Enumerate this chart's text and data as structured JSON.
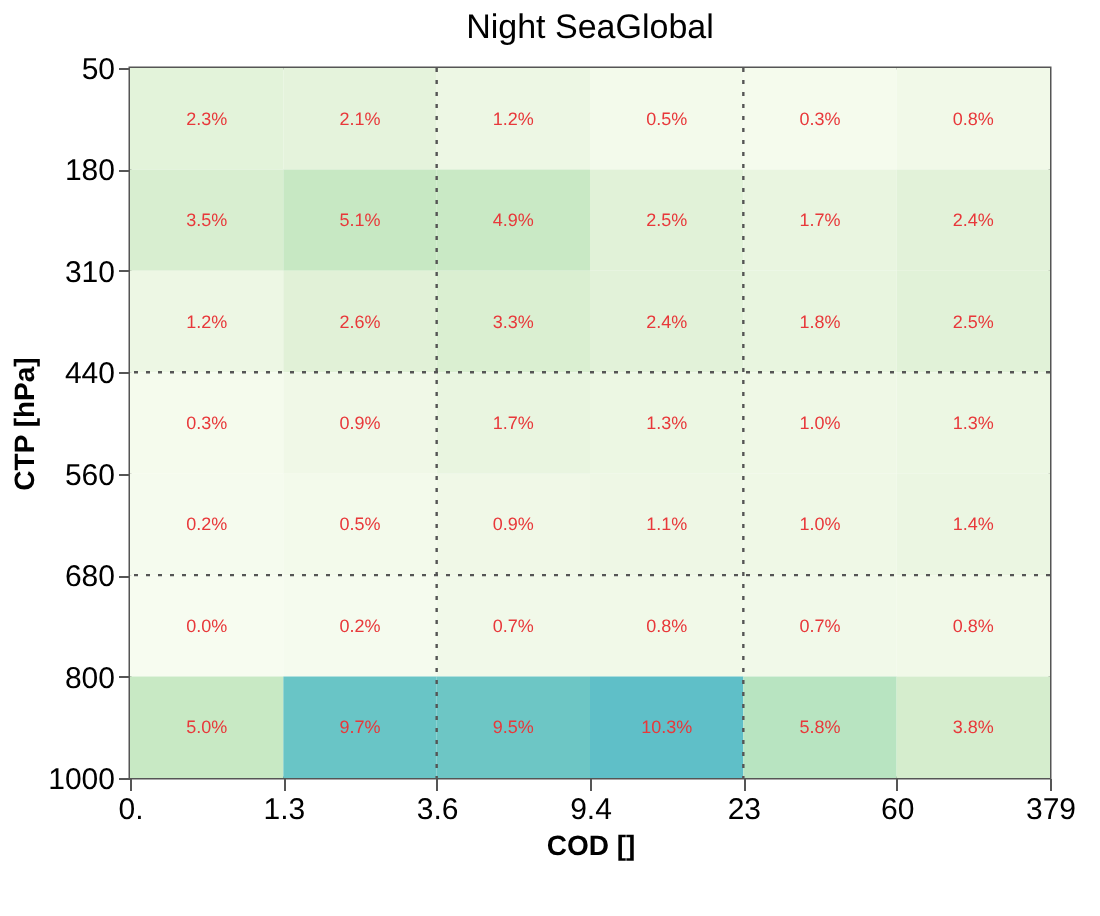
{
  "chart_data": {
    "type": "heatmap",
    "title": "Night SeaGlobal",
    "xlabel": "COD []",
    "ylabel": "CTP [hPa]",
    "categories": [
      null,
      null,
      null,
      null,
      null,
      null
    ],
    "y_categories": [
      null,
      null,
      null,
      null,
      null,
      null,
      null
    ],
    "annotations": [
      "0.",
      "1.3",
      "3.6",
      "9.4",
      "23",
      "60",
      "379",
      "50",
      "180",
      "310",
      "440",
      "560",
      "680",
      "800",
      "1000"
    ],
    "cells": [
      [
        2.3,
        2.1,
        1.2,
        0.5,
        0.3,
        0.8
      ],
      [
        3.5,
        5.1,
        4.9,
        2.5,
        1.7,
        2.4
      ],
      [
        1.2,
        2.6,
        3.3,
        2.4,
        1.8,
        2.5
      ],
      [
        0.3,
        0.9,
        1.7,
        1.3,
        1.0,
        1.3
      ],
      [
        0.2,
        0.5,
        0.9,
        1.1,
        1.0,
        1.4
      ],
      [
        0.0,
        0.2,
        0.7,
        0.8,
        0.7,
        0.8
      ],
      [
        5.0,
        9.7,
        9.5,
        10.3,
        5.8,
        3.8
      ]
    ],
    "cell_labels": [
      [
        "2.3%",
        "2.1%",
        "1.2%",
        "0.5%",
        "0.3%",
        "0.8%"
      ],
      [
        "3.5%",
        "5.1%",
        "4.9%",
        "2.5%",
        "1.7%",
        "2.4%"
      ],
      [
        "1.2%",
        "2.6%",
        "3.3%",
        "2.4%",
        "1.8%",
        "2.5%"
      ],
      [
        "0.3%",
        "0.9%",
        "1.7%",
        "1.3%",
        "1.0%",
        "1.3%"
      ],
      [
        "0.2%",
        "0.5%",
        "0.9%",
        "1.1%",
        "1.0%",
        "1.4%"
      ],
      [
        "0.0%",
        "0.2%",
        "0.7%",
        "0.8%",
        "0.7%",
        "0.8%"
      ],
      [
        "5.0%",
        "9.7%",
        "9.5%",
        "10.3%",
        "5.8%",
        "3.8%"
      ]
    ],
    "grid": false,
    "legend": false
  }
}
